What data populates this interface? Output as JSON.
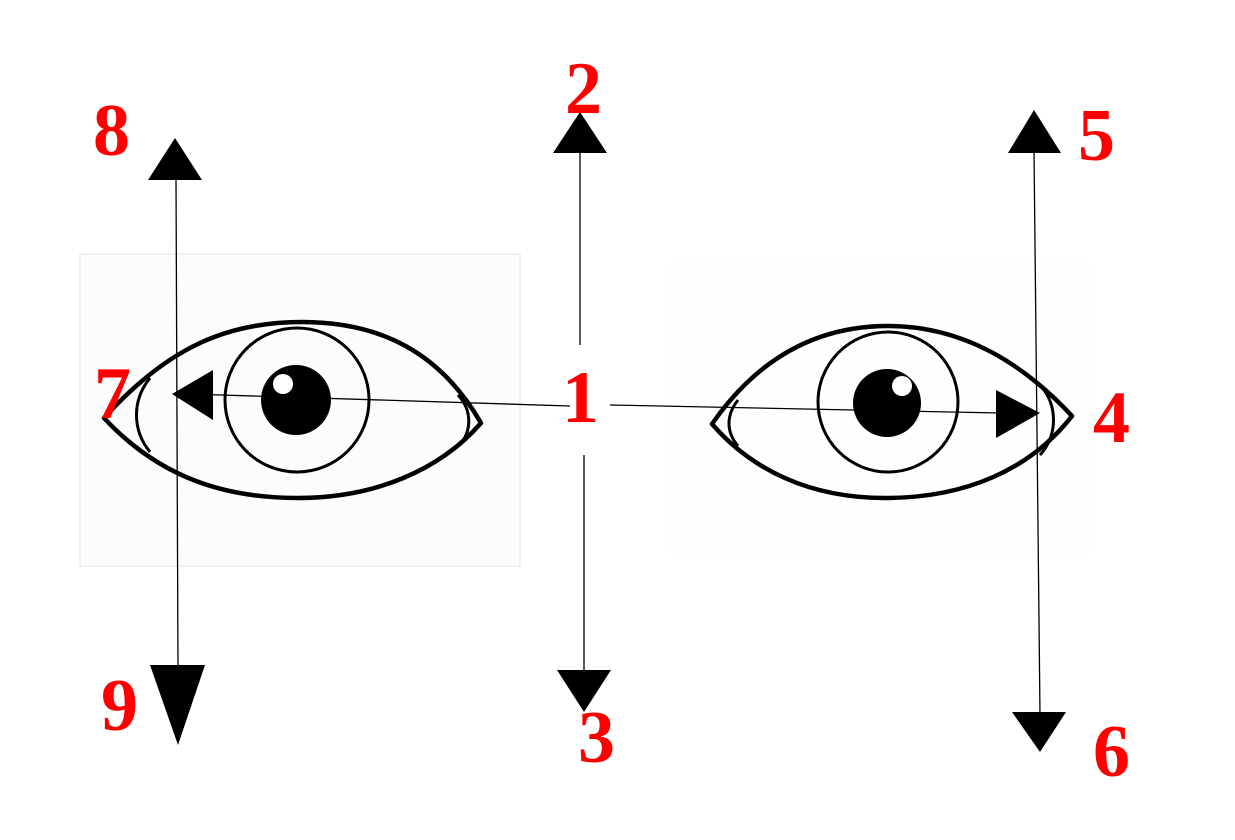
{
  "labels": {
    "center": "1",
    "up": "2",
    "down": "3",
    "right": "4",
    "up_right": "5",
    "down_right": "6",
    "left": "7",
    "up_left": "8",
    "down_left": "9"
  },
  "colors": {
    "label": "#ff0000",
    "lines": "#000000",
    "background": "#ffffff"
  },
  "icons": {
    "eyes": [
      "left-eye-icon",
      "right-eye-icon"
    ],
    "arrowheads": "triangle-arrow"
  }
}
